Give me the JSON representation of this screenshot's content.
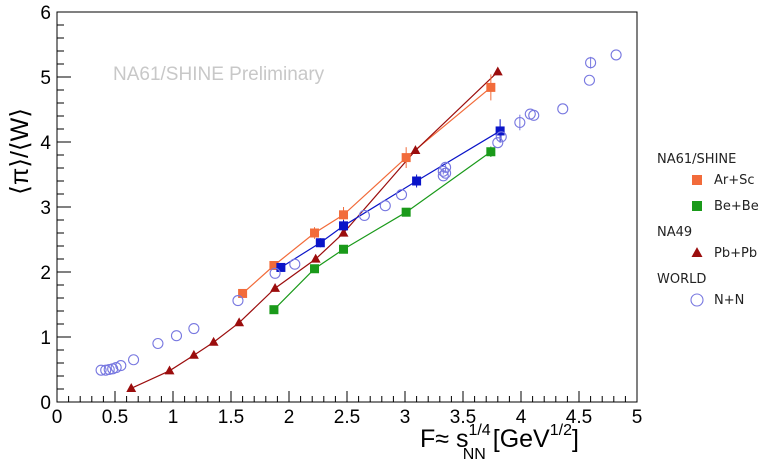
{
  "chart_data": {
    "type": "scatter",
    "annotation": "NA61/SHINE Preliminary",
    "xlabel": {
      "main": "F≈ s",
      "sup": "1/4",
      "sub": "NN",
      "unit": " [GeV",
      "unit_sup": "1/2",
      "unit_end": "]"
    },
    "ylabel": "⟨π⟩/⟨W⟩",
    "xlim": [
      0,
      5
    ],
    "ylim": [
      0,
      6
    ],
    "xticks": [
      "0",
      "0.5",
      "1",
      "1.5",
      "2",
      "2.5",
      "3",
      "3.5",
      "4",
      "4.5",
      "5"
    ],
    "yticks": [
      "0",
      "1",
      "2",
      "3",
      "4",
      "5",
      "6"
    ],
    "legend_groups": [
      "NA61/SHINE",
      "NA49",
      "WORLD"
    ],
    "series": [
      {
        "name": "Ar+Sc",
        "group": "NA61/SHINE",
        "marker": "square",
        "color": "#f26b3a",
        "line": true,
        "x": [
          1.6,
          1.87,
          2.22,
          2.47,
          3.01,
          3.74
        ],
        "y": [
          1.67,
          2.1,
          2.6,
          2.88,
          3.76,
          4.84
        ],
        "err": [
          0.04,
          0.06,
          0.09,
          0.12,
          0.16,
          0.2
        ]
      },
      {
        "name": "Be+Be",
        "group": "NA61/SHINE",
        "marker": "square",
        "color": "#1a9a1a",
        "line": true,
        "x": [
          1.87,
          2.22,
          2.47,
          3.01,
          3.74
        ],
        "y": [
          1.42,
          2.05,
          2.35,
          2.92,
          3.85
        ],
        "err": [
          0.03,
          0.04,
          0.05,
          0.06,
          0.08
        ]
      },
      {
        "name": "Pb+Pb",
        "group": "NA49",
        "marker": "triangle",
        "color": "#9b0d0d",
        "line": true,
        "x": [
          0.64,
          0.97,
          1.18,
          1.35,
          1.57,
          1.88,
          2.23,
          2.47,
          3.09,
          3.8
        ],
        "y": [
          0.21,
          0.48,
          0.72,
          0.92,
          1.22,
          1.75,
          2.2,
          2.6,
          3.87,
          5.08
        ],
        "err": [
          0,
          0,
          0,
          0,
          0,
          0,
          0,
          0,
          0,
          0
        ]
      },
      {
        "name": "",
        "group": "",
        "marker": "square",
        "color": "#0a14c8",
        "line": true,
        "x": [
          1.93,
          2.27,
          2.47,
          3.1,
          3.82
        ],
        "y": [
          2.07,
          2.45,
          2.71,
          3.4,
          4.17
        ],
        "err": [
          0.05,
          0.07,
          0.09,
          0.1,
          0.18
        ]
      },
      {
        "name": "N+N",
        "group": "WORLD",
        "marker": "open-circle",
        "color": "#7878e0",
        "line": false,
        "x": [
          0.38,
          0.42,
          0.45,
          0.48,
          0.51,
          0.55,
          0.66,
          0.87,
          1.03,
          1.18,
          1.56,
          1.88,
          2.05,
          2.65,
          2.83,
          2.97,
          3.33,
          3.33,
          3.35,
          3.35,
          3.8,
          3.83,
          3.99,
          4.08,
          4.11,
          4.36,
          4.59,
          4.6,
          4.82
        ],
        "y": [
          0.49,
          0.49,
          0.5,
          0.51,
          0.53,
          0.56,
          0.65,
          0.9,
          1.02,
          1.13,
          1.56,
          1.98,
          2.12,
          2.87,
          3.02,
          3.19,
          3.48,
          3.55,
          3.61,
          3.52,
          3.99,
          4.08,
          4.3,
          4.43,
          4.41,
          4.51,
          4.95,
          5.22,
          5.34
        ],
        "err": [
          0,
          0,
          0,
          0,
          0,
          0,
          0,
          0,
          0,
          0,
          0,
          0,
          0,
          0,
          0,
          0,
          0,
          0.05,
          0.07,
          0,
          0,
          0.06,
          0.12,
          0,
          0,
          0,
          0,
          0.09,
          0
        ]
      }
    ]
  }
}
